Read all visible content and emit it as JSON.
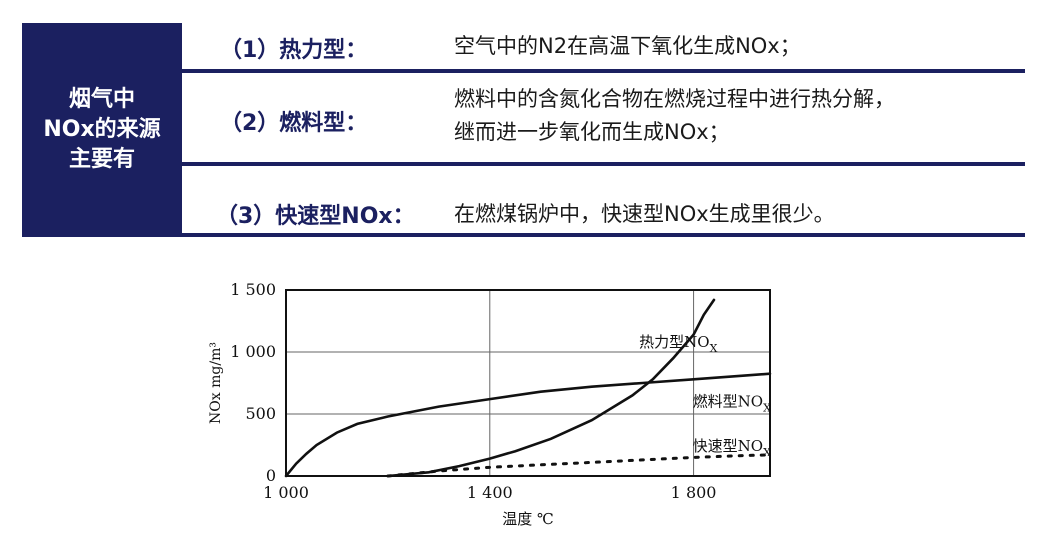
{
  "left_block": {
    "lines": [
      "烟气中",
      "NOx的来源",
      "主要有"
    ]
  },
  "rows": [
    {
      "label": "（1）热力型：",
      "desc": [
        "空气中的N2在高温下氧化生成NOx；"
      ]
    },
    {
      "label": "（2）燃料型：",
      "desc": [
        "燃料中的含氮化合物在燃烧过程中进行热分解，",
        "继而进一步氧化而生成NOx；"
      ]
    },
    {
      "label": "（3）快速型NOx：",
      "desc": [
        "在燃煤锅炉中，快速型NOx生成里很少。"
      ]
    }
  ],
  "colors": {
    "navy": "#1b2060",
    "text": "#1a1a1a"
  },
  "chart_data": {
    "type": "line",
    "xlabel": "温度 ℃",
    "ylabel": "NOx mg/m³",
    "xlim": [
      1000,
      1950
    ],
    "ylim": [
      0,
      1500
    ],
    "x_ticks": [
      {
        "value": 1000,
        "label": "1 000"
      },
      {
        "value": 1400,
        "label": "1 400"
      },
      {
        "value": 1800,
        "label": "1 800"
      }
    ],
    "y_ticks": [
      {
        "value": 0,
        "label": "0"
      },
      {
        "value": 500,
        "label": "500"
      },
      {
        "value": 1000,
        "label": "1 000"
      },
      {
        "value": 1500,
        "label": "1 500"
      }
    ],
    "grid": true,
    "series": [
      {
        "name": "热力型NOx",
        "style": "solid",
        "points": [
          [
            1200,
            0
          ],
          [
            1280,
            30
          ],
          [
            1340,
            80
          ],
          [
            1400,
            140
          ],
          [
            1450,
            200
          ],
          [
            1520,
            300
          ],
          [
            1600,
            450
          ],
          [
            1680,
            650
          ],
          [
            1720,
            780
          ],
          [
            1760,
            950
          ],
          [
            1800,
            1140
          ],
          [
            1820,
            1300
          ],
          [
            1840,
            1420
          ]
        ]
      },
      {
        "name": "燃料型NOx",
        "style": "solid",
        "points": [
          [
            1000,
            0
          ],
          [
            1020,
            100
          ],
          [
            1040,
            180
          ],
          [
            1060,
            250
          ],
          [
            1100,
            350
          ],
          [
            1140,
            420
          ],
          [
            1200,
            480
          ],
          [
            1300,
            560
          ],
          [
            1400,
            620
          ],
          [
            1500,
            680
          ],
          [
            1600,
            720
          ],
          [
            1700,
            750
          ],
          [
            1800,
            780
          ],
          [
            1900,
            810
          ],
          [
            1950,
            825
          ]
        ]
      },
      {
        "name": "快速型NOx",
        "style": "dotted",
        "points": [
          [
            1200,
            0
          ],
          [
            1300,
            40
          ],
          [
            1400,
            70
          ],
          [
            1500,
            90
          ],
          [
            1600,
            110
          ],
          [
            1700,
            130
          ],
          [
            1800,
            150
          ],
          [
            1900,
            165
          ],
          [
            1950,
            170
          ]
        ]
      }
    ],
    "series_labels": [
      {
        "name": "热力型NO",
        "sub": "X"
      },
      {
        "name": "燃料型NO",
        "sub": "X"
      },
      {
        "name": "快速型NO",
        "sub": "X"
      }
    ]
  }
}
